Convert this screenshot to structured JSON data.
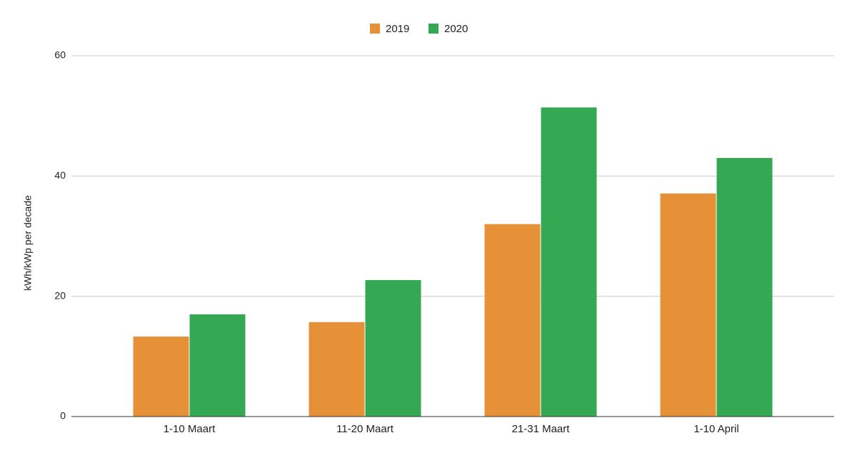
{
  "chart_data": {
    "type": "bar",
    "y_label": "kWh/kWp per decade",
    "categories": [
      "1-10 Maart",
      "11-20 Maart",
      "21-31 Maart",
      "1-10 April"
    ],
    "series": [
      {
        "name": "2019",
        "color": "#e69138",
        "values": [
          13.3,
          15.7,
          32.0,
          37.1
        ]
      },
      {
        "name": "2020",
        "color": "#34a853",
        "values": [
          17.0,
          22.7,
          51.4,
          43.0
        ]
      }
    ],
    "ylim": [
      0,
      60
    ],
    "yticks": [
      0,
      20,
      40,
      60
    ],
    "grid": true,
    "legend": "top"
  }
}
